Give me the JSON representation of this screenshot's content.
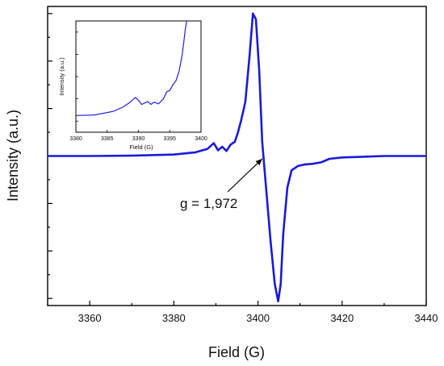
{
  "chart_data": [
    {
      "type": "line",
      "title": "",
      "xlabel": "Field (G)",
      "ylabel": "Intensity (a.u.)",
      "xlim": [
        3350,
        3440
      ],
      "ylim": [
        -1.05,
        1.05
      ],
      "x_ticks": [
        3360,
        3380,
        3400,
        3420,
        3440
      ],
      "y_ticks_labeled": false,
      "grid": false,
      "legend": "none",
      "series_color": "#1a1adb",
      "series": [
        {
          "x": [
            3350,
            3360,
            3370,
            3380,
            3385,
            3388,
            3389.5,
            3390.5,
            3391.5,
            3392.5,
            3393.5,
            3394.5,
            3395.2,
            3396,
            3397,
            3398,
            3398.8,
            3399.5,
            3400.3,
            3401,
            3402,
            3403,
            3404,
            3404.8,
            3405.4,
            3406,
            3407,
            3408,
            3409.5,
            3411,
            3413,
            3415,
            3417,
            3420,
            3425,
            3430,
            3440
          ],
          "y": [
            0,
            0,
            0.002,
            0.01,
            0.025,
            0.05,
            0.09,
            0.04,
            0.065,
            0.035,
            0.08,
            0.1,
            0.16,
            0.25,
            0.38,
            0.7,
            1.0,
            0.96,
            0.6,
            0.1,
            -0.25,
            -0.6,
            -0.9,
            -1.02,
            -0.9,
            -0.55,
            -0.22,
            -0.1,
            -0.07,
            -0.06,
            -0.055,
            -0.045,
            -0.02,
            -0.01,
            -0.005,
            0,
            0
          ]
        }
      ],
      "annotations": [
        {
          "text": "g = 1,972",
          "arrow_to": [
            3401,
            -0.02
          ]
        }
      ]
    },
    {
      "type": "line",
      "title": "",
      "xlabel": "Field (G)",
      "ylabel": "Intensity (a.u.)",
      "xlim": [
        3380,
        3400
      ],
      "ylim": [
        -0.05,
        0.35
      ],
      "x_ticks": [
        3380,
        3385,
        3390,
        3395,
        3400
      ],
      "grid": false,
      "series_color": "#2222dd",
      "series": [
        {
          "x": [
            3380,
            3383,
            3386,
            3387.5,
            3388.5,
            3389.5,
            3390,
            3390.5,
            3391,
            3391.5,
            3392,
            3392.5,
            3393.2,
            3394,
            3394.5,
            3395,
            3395.5,
            3396,
            3396.5,
            3397,
            3397.5,
            3397.7
          ],
          "y": [
            0.01,
            0.012,
            0.025,
            0.04,
            0.055,
            0.075,
            0.065,
            0.05,
            0.055,
            0.06,
            0.05,
            0.058,
            0.052,
            0.07,
            0.095,
            0.1,
            0.12,
            0.135,
            0.17,
            0.23,
            0.32,
            0.35
          ]
        }
      ]
    }
  ]
}
